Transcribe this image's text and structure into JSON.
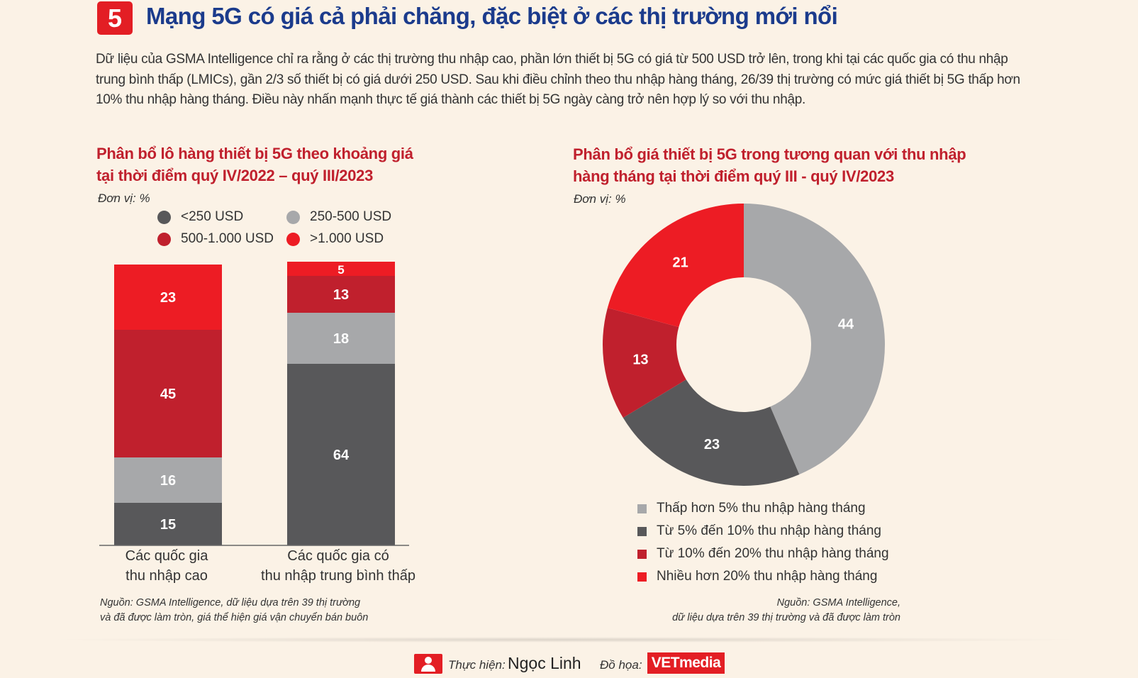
{
  "header": {
    "badge": "5",
    "title": "Mạng 5G có giá cả phải chăng, đặc biệt ở các thị trường mới nổi",
    "intro": "Dữ liệu của GSMA Intelligence chỉ ra rằng ở các thị trường thu nhập cao, phần lớn thiết bị 5G có giá từ 500 USD trở lên, trong khi tại các quốc gia có thu nhập trung bình thấp (LMICs), gần 2/3 số thiết bị có giá dưới 250 USD. Sau khi điều chỉnh theo thu nhập hàng tháng, 26/39 thị trường có mức giá thiết bị 5G thấp hơn 10% thu nhập hàng tháng. Điều này nhấn mạnh thực tế giá thành các thiết bị 5G ngày càng trở nên hợp lý so với thu nhập."
  },
  "colors": {
    "accent_red": "#e31e24",
    "dark_red": "#c0202d",
    "dark_gray": "#58585a",
    "light_gray": "#a7a8aa",
    "title_blue": "#1b3b8c"
  },
  "chart_data": [
    {
      "type": "bar",
      "stacked": true,
      "title_line1": "Phân bổ lô hàng thiết bị 5G theo khoảng giá",
      "title_line2": "tại thời điểm quý IV/2022 – quý III/2023",
      "unit": "Đơn vị: %",
      "categories_line1": [
        "Các quốc gia",
        "Các quốc gia có"
      ],
      "categories_line2": [
        "thu nhập cao",
        "thu nhập trung bình thấp"
      ],
      "ylim": [
        0,
        100
      ],
      "series": [
        {
          "name": "<250 USD",
          "color": "#58585a",
          "values": [
            15,
            64
          ]
        },
        {
          "name": "250-500 USD",
          "color": "#a7a8aa",
          "values": [
            16,
            18
          ]
        },
        {
          "name": "500-1.000 USD",
          "color": "#c0202d",
          "values": [
            45,
            13
          ]
        },
        {
          "name": ">1.000 USD",
          "color": "#ed1c24",
          "values": [
            23,
            5
          ]
        }
      ],
      "legend_placement": "top",
      "source_line1": "Nguồn: GSMA Intelligence, dữ liệu dựa trên 39 thị trường",
      "source_line2": "và đã được làm tròn, giá thể hiện giá vận chuyển bán buôn"
    },
    {
      "type": "pie",
      "donut": true,
      "title_line1": "Phân bổ giá thiết bị 5G trong tương quan với thu nhập",
      "title_line2": "hàng tháng tại thời điểm quý III - quý IV/2023",
      "unit": "Đơn vị: %",
      "slices": [
        {
          "label": "Thấp hơn 5% thu nhập hàng tháng",
          "value": 44,
          "color": "#a7a8aa"
        },
        {
          "label": "Từ 5% đến 10% thu nhập hàng tháng",
          "value": 23,
          "color": "#58585a"
        },
        {
          "label": "Từ 10% đến 20% thu nhập hàng tháng",
          "value": 13,
          "color": "#c0202d"
        },
        {
          "label": "Nhiều hơn 20% thu nhập hàng tháng",
          "value": 21,
          "color": "#ed1c24"
        }
      ],
      "legend_placement": "bottom",
      "source_line1": "Nguồn: GSMA Intelligence,",
      "source_line2": "dữ liệu dựa trên 39 thị trường và đã được làm tròn"
    }
  ],
  "footer": {
    "credit_label": "Thực hiện:",
    "credit_name": "Ngọc Linh",
    "graphics_label": "Đồ họa:",
    "graphics_logo": "VETmedia"
  }
}
